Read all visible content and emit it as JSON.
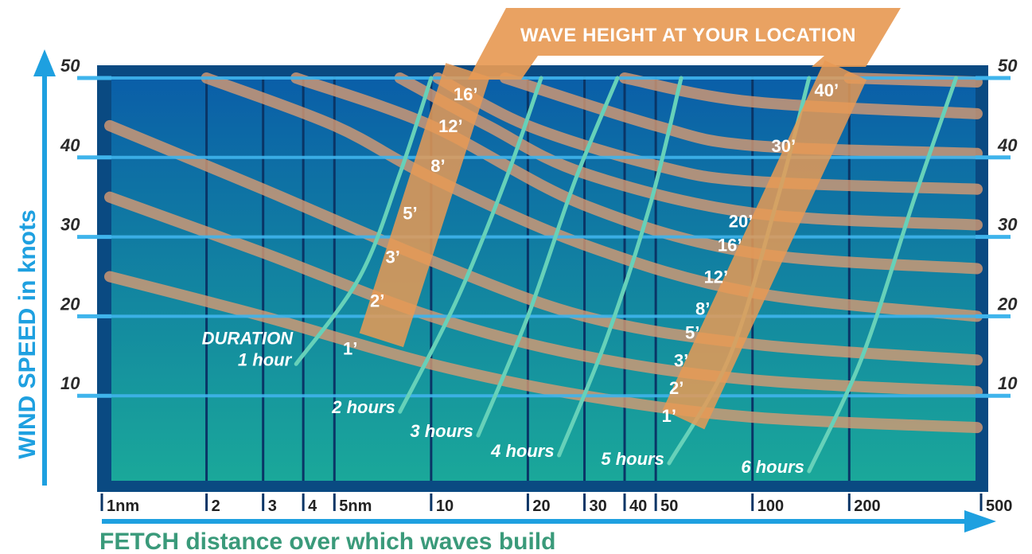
{
  "chart_data": {
    "type": "line",
    "title": "WAVE HEIGHT AT YOUR LOCATION",
    "xlabel": "FETCH distance over which waves build",
    "ylabel": "WIND SPEED in knots",
    "x_scale": "log",
    "x_unit": "nm",
    "y_unit": "knots",
    "xlim": [
      1,
      500
    ],
    "ylim": [
      0,
      50
    ],
    "x_ticks": [
      {
        "value": 1,
        "label": "1nm"
      },
      {
        "value": 2,
        "label": "2"
      },
      {
        "value": 3,
        "label": "3"
      },
      {
        "value": 4,
        "label": "4"
      },
      {
        "value": 5,
        "label": "5nm"
      },
      {
        "value": 10,
        "label": "10"
      },
      {
        "value": 20,
        "label": "20"
      },
      {
        "value": 30,
        "label": "30"
      },
      {
        "value": 40,
        "label": "40"
      },
      {
        "value": 50,
        "label": "50"
      },
      {
        "value": 100,
        "label": "100"
      },
      {
        "value": 200,
        "label": "200"
      },
      {
        "value": 500,
        "label": "500"
      }
    ],
    "y_ticks": [
      {
        "value": 10,
        "label": "10"
      },
      {
        "value": 20,
        "label": "20"
      },
      {
        "value": 30,
        "label": "30"
      },
      {
        "value": 40,
        "label": "40"
      },
      {
        "value": 50,
        "label": "50"
      }
    ],
    "grid": true,
    "wave_height_curves": [
      {
        "height": "1'",
        "points": [
          [
            1,
            25
          ],
          [
            3,
            20
          ],
          [
            10,
            14
          ],
          [
            30,
            10
          ],
          [
            100,
            7.3
          ],
          [
            500,
            6
          ]
        ]
      },
      {
        "height": "2'",
        "points": [
          [
            1,
            35
          ],
          [
            3,
            28
          ],
          [
            10,
            20
          ],
          [
            30,
            15
          ],
          [
            100,
            12
          ],
          [
            500,
            10.5
          ]
        ]
      },
      {
        "height": "3'",
        "points": [
          [
            1,
            44
          ],
          [
            3,
            36
          ],
          [
            10,
            27
          ],
          [
            30,
            20
          ],
          [
            100,
            16.5
          ],
          [
            500,
            14.5
          ]
        ]
      },
      {
        "height": "5'",
        "points": [
          [
            2,
            50
          ],
          [
            5,
            44
          ],
          [
            10,
            37.5
          ],
          [
            30,
            29
          ],
          [
            100,
            23
          ],
          [
            500,
            20
          ]
        ]
      },
      {
        "height": "8'",
        "points": [
          [
            3.8,
            50
          ],
          [
            10,
            44
          ],
          [
            30,
            34
          ],
          [
            100,
            28
          ],
          [
            500,
            26
          ]
        ]
      },
      {
        "height": "12'",
        "points": [
          [
            8,
            50
          ],
          [
            15,
            44
          ],
          [
            30,
            38
          ],
          [
            100,
            33
          ],
          [
            500,
            31.5
          ]
        ]
      },
      {
        "height": "16'",
        "points": [
          [
            10.5,
            50
          ],
          [
            20,
            44
          ],
          [
            50,
            39
          ],
          [
            100,
            37
          ],
          [
            500,
            36
          ]
        ]
      },
      {
        "height": "20'",
        "points": [
          [
            17,
            50
          ],
          [
            50,
            44
          ],
          [
            100,
            41.5
          ],
          [
            500,
            40.5
          ]
        ]
      },
      {
        "height": "30'",
        "points": [
          [
            40,
            50
          ],
          [
            100,
            47
          ],
          [
            500,
            45.5
          ]
        ]
      },
      {
        "height": "40'",
        "points": [
          [
            200,
            50
          ],
          [
            500,
            49.5
          ]
        ]
      }
    ],
    "duration_curves": [
      {
        "label": "1 hour",
        "points": [
          [
            3.8,
            14
          ],
          [
            6,
            25
          ],
          [
            8,
            38
          ],
          [
            10,
            50
          ]
        ]
      },
      {
        "label": "2 hours",
        "points": [
          [
            8,
            8
          ],
          [
            12,
            22
          ],
          [
            17,
            37
          ],
          [
            22,
            50
          ]
        ]
      },
      {
        "label": "3 hours",
        "points": [
          [
            14,
            5
          ],
          [
            20,
            20
          ],
          [
            28,
            37
          ],
          [
            38,
            50
          ]
        ]
      },
      {
        "label": "4 hours",
        "points": [
          [
            25,
            2.5
          ],
          [
            35,
            17
          ],
          [
            48,
            34
          ],
          [
            60,
            50
          ]
        ]
      },
      {
        "label": "5 hours",
        "points": [
          [
            55,
            1.5
          ],
          [
            85,
            15
          ],
          [
            120,
            35
          ],
          [
            150,
            50
          ]
        ]
      },
      {
        "label": "6 hours",
        "points": [
          [
            150,
            0.5
          ],
          [
            220,
            15
          ],
          [
            320,
            35
          ],
          [
            430,
            50
          ]
        ]
      }
    ],
    "duration_title": "DURATION",
    "band_left": {
      "points": [
        [
          7,
          17
        ],
        [
          13,
          51
        ]
      ],
      "labels": [
        {
          "text": "1’",
          "x": 5.6,
          "y": 16
        },
        {
          "text": "2’",
          "x": 6.8,
          "y": 22
        },
        {
          "text": "3’",
          "x": 7.6,
          "y": 27.5
        },
        {
          "text": "5’",
          "x": 8.6,
          "y": 33
        },
        {
          "text": "8’",
          "x": 10.5,
          "y": 39
        },
        {
          "text": "12’",
          "x": 11.5,
          "y": 44
        },
        {
          "text": "16’",
          "x": 12.8,
          "y": 48
        }
      ]
    },
    "band_right": {
      "points": [
        [
          61,
          7
        ],
        [
          195,
          51
        ]
      ],
      "labels": [
        {
          "text": "1’",
          "x": 55,
          "y": 7.5
        },
        {
          "text": "2’",
          "x": 58,
          "y": 11
        },
        {
          "text": "3’",
          "x": 60,
          "y": 14.5
        },
        {
          "text": "5’",
          "x": 65,
          "y": 18
        },
        {
          "text": "8’",
          "x": 70,
          "y": 21
        },
        {
          "text": "12’",
          "x": 77,
          "y": 25
        },
        {
          "text": "16’",
          "x": 85,
          "y": 29
        },
        {
          "text": "20’",
          "x": 92,
          "y": 32
        },
        {
          "text": "30’",
          "x": 125,
          "y": 41.5
        },
        {
          "text": "40’",
          "x": 170,
          "y": 48.5
        }
      ]
    },
    "colors": {
      "plot_top": "#0a5ea8",
      "plot_bottom": "#1aa89a",
      "frame": "#0a4a82",
      "gridline": "#3fb4ec",
      "wave_curve": "#d79a72",
      "duration_curve": "#66d1b9",
      "band": "#e79a55",
      "y_title": "#1ea0e0",
      "x_title": "#3a9a7a"
    }
  }
}
